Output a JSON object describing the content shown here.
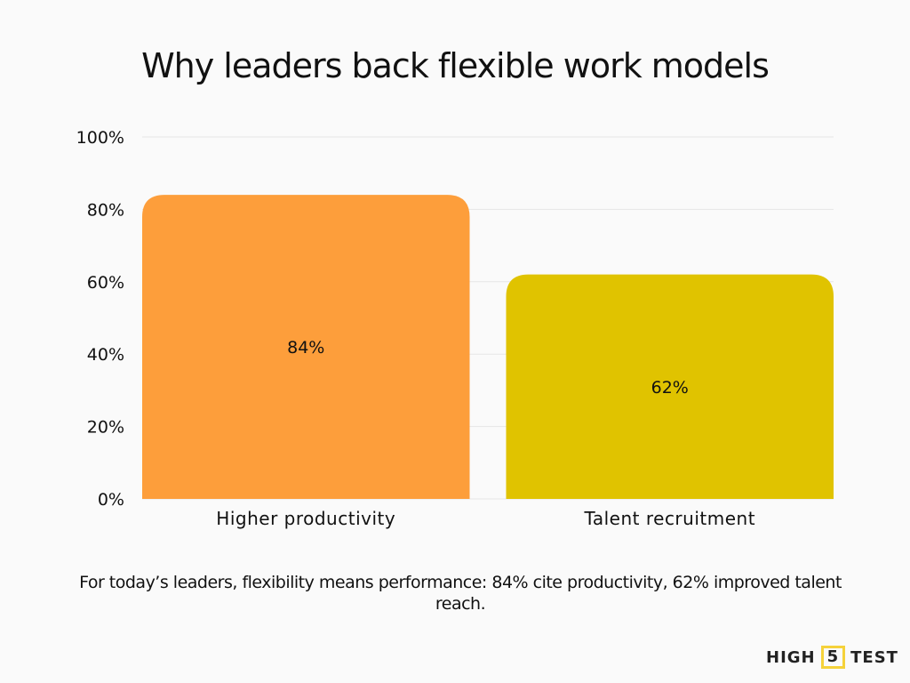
{
  "chart_data": {
    "type": "bar",
    "title": "Why leaders back flexible work models",
    "categories": [
      "Higher productivity",
      "Talent recruitment"
    ],
    "values": [
      84,
      62
    ],
    "data_labels": [
      "84%",
      "62%"
    ],
    "colors": [
      "#fd9e3b",
      "#e0c300"
    ],
    "ylim": [
      0,
      100
    ],
    "yticks": [
      0,
      20,
      40,
      60,
      80,
      100
    ],
    "ytick_labels": [
      "0%",
      "20%",
      "40%",
      "60%",
      "80%",
      "100%"
    ],
    "grid": true,
    "xlabel": "",
    "ylabel": ""
  },
  "caption": "For today’s leaders, flexibility means performance: 84% cite productivity, 62% improved talent reach.",
  "logo": {
    "left": "HIGH",
    "mid": "5",
    "right": "TEST",
    "accent": "#f5d23a"
  }
}
